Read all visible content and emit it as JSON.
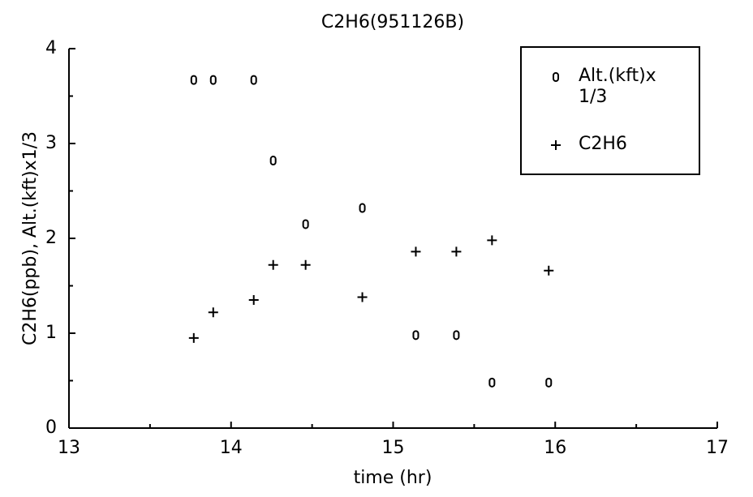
{
  "chart_data": {
    "type": "scatter",
    "title": "C2H6(951126B)",
    "x_label": "time (hr)",
    "y_label": "C2H6(ppb), Alt.(kft)x1/3",
    "x": [
      13.77,
      13.89,
      14.14,
      14.26,
      14.46,
      14.81,
      15.14,
      15.39,
      15.61,
      15.96
    ],
    "series": [
      {
        "name": "Alt.(kft)x 1/3",
        "color": "#000000",
        "marker": "o",
        "values": [
          3.67,
          3.67,
          3.67,
          2.82,
          2.15,
          2.32,
          0.98,
          0.98,
          0.48,
          0.48
        ]
      },
      {
        "name": "C2H6",
        "color": "#000000",
        "marker": "+",
        "values": [
          0.95,
          1.22,
          1.35,
          1.72,
          1.72,
          1.38,
          1.86,
          1.86,
          1.98,
          1.66
        ]
      }
    ],
    "xlim": [
      13,
      17
    ],
    "xticks": [
      13,
      14,
      15,
      16,
      17
    ],
    "ylim": [
      0,
      4
    ],
    "yticks": [
      0,
      1,
      2,
      3,
      4
    ],
    "legend": "upper-right"
  }
}
